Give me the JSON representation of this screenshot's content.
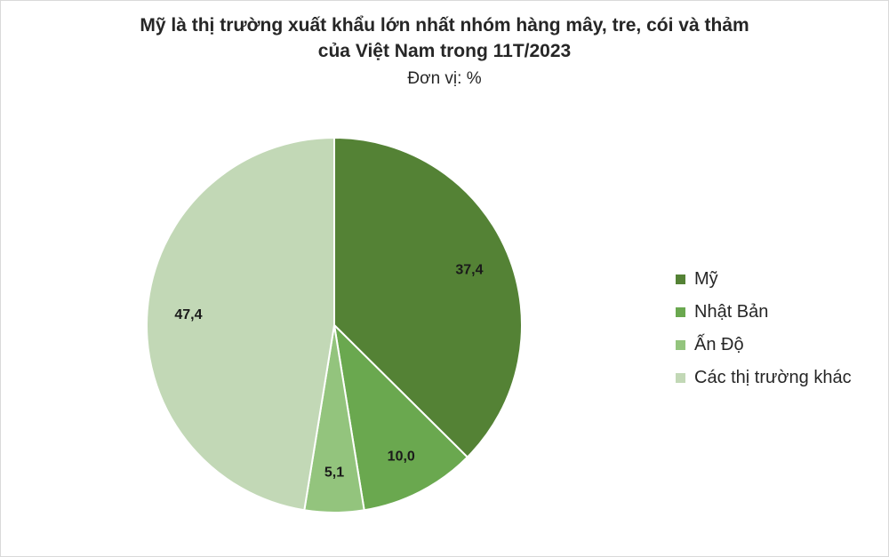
{
  "chart_data": {
    "type": "pie",
    "title_line1": "Mỹ là thị trường xuất khẩu lớn nhất nhóm hàng mây, tre, cói và thảm",
    "title_line2": "của Việt Nam trong 11T/2023",
    "subtitle": "Đơn vị: %",
    "slices": [
      {
        "name": "Mỹ",
        "value": 37.4,
        "label": "37,4",
        "color": "#548235"
      },
      {
        "name": "Nhật Bản",
        "value": 10.0,
        "label": "10,0",
        "color": "#6aa84f"
      },
      {
        "name": "Ấn Độ",
        "value": 5.1,
        "label": "5,1",
        "color": "#93c47d"
      },
      {
        "name": "Các thị trường khác",
        "value": 47.4,
        "label": "47,4",
        "color": "#c2d8b6"
      }
    ],
    "legend_position": "right"
  }
}
